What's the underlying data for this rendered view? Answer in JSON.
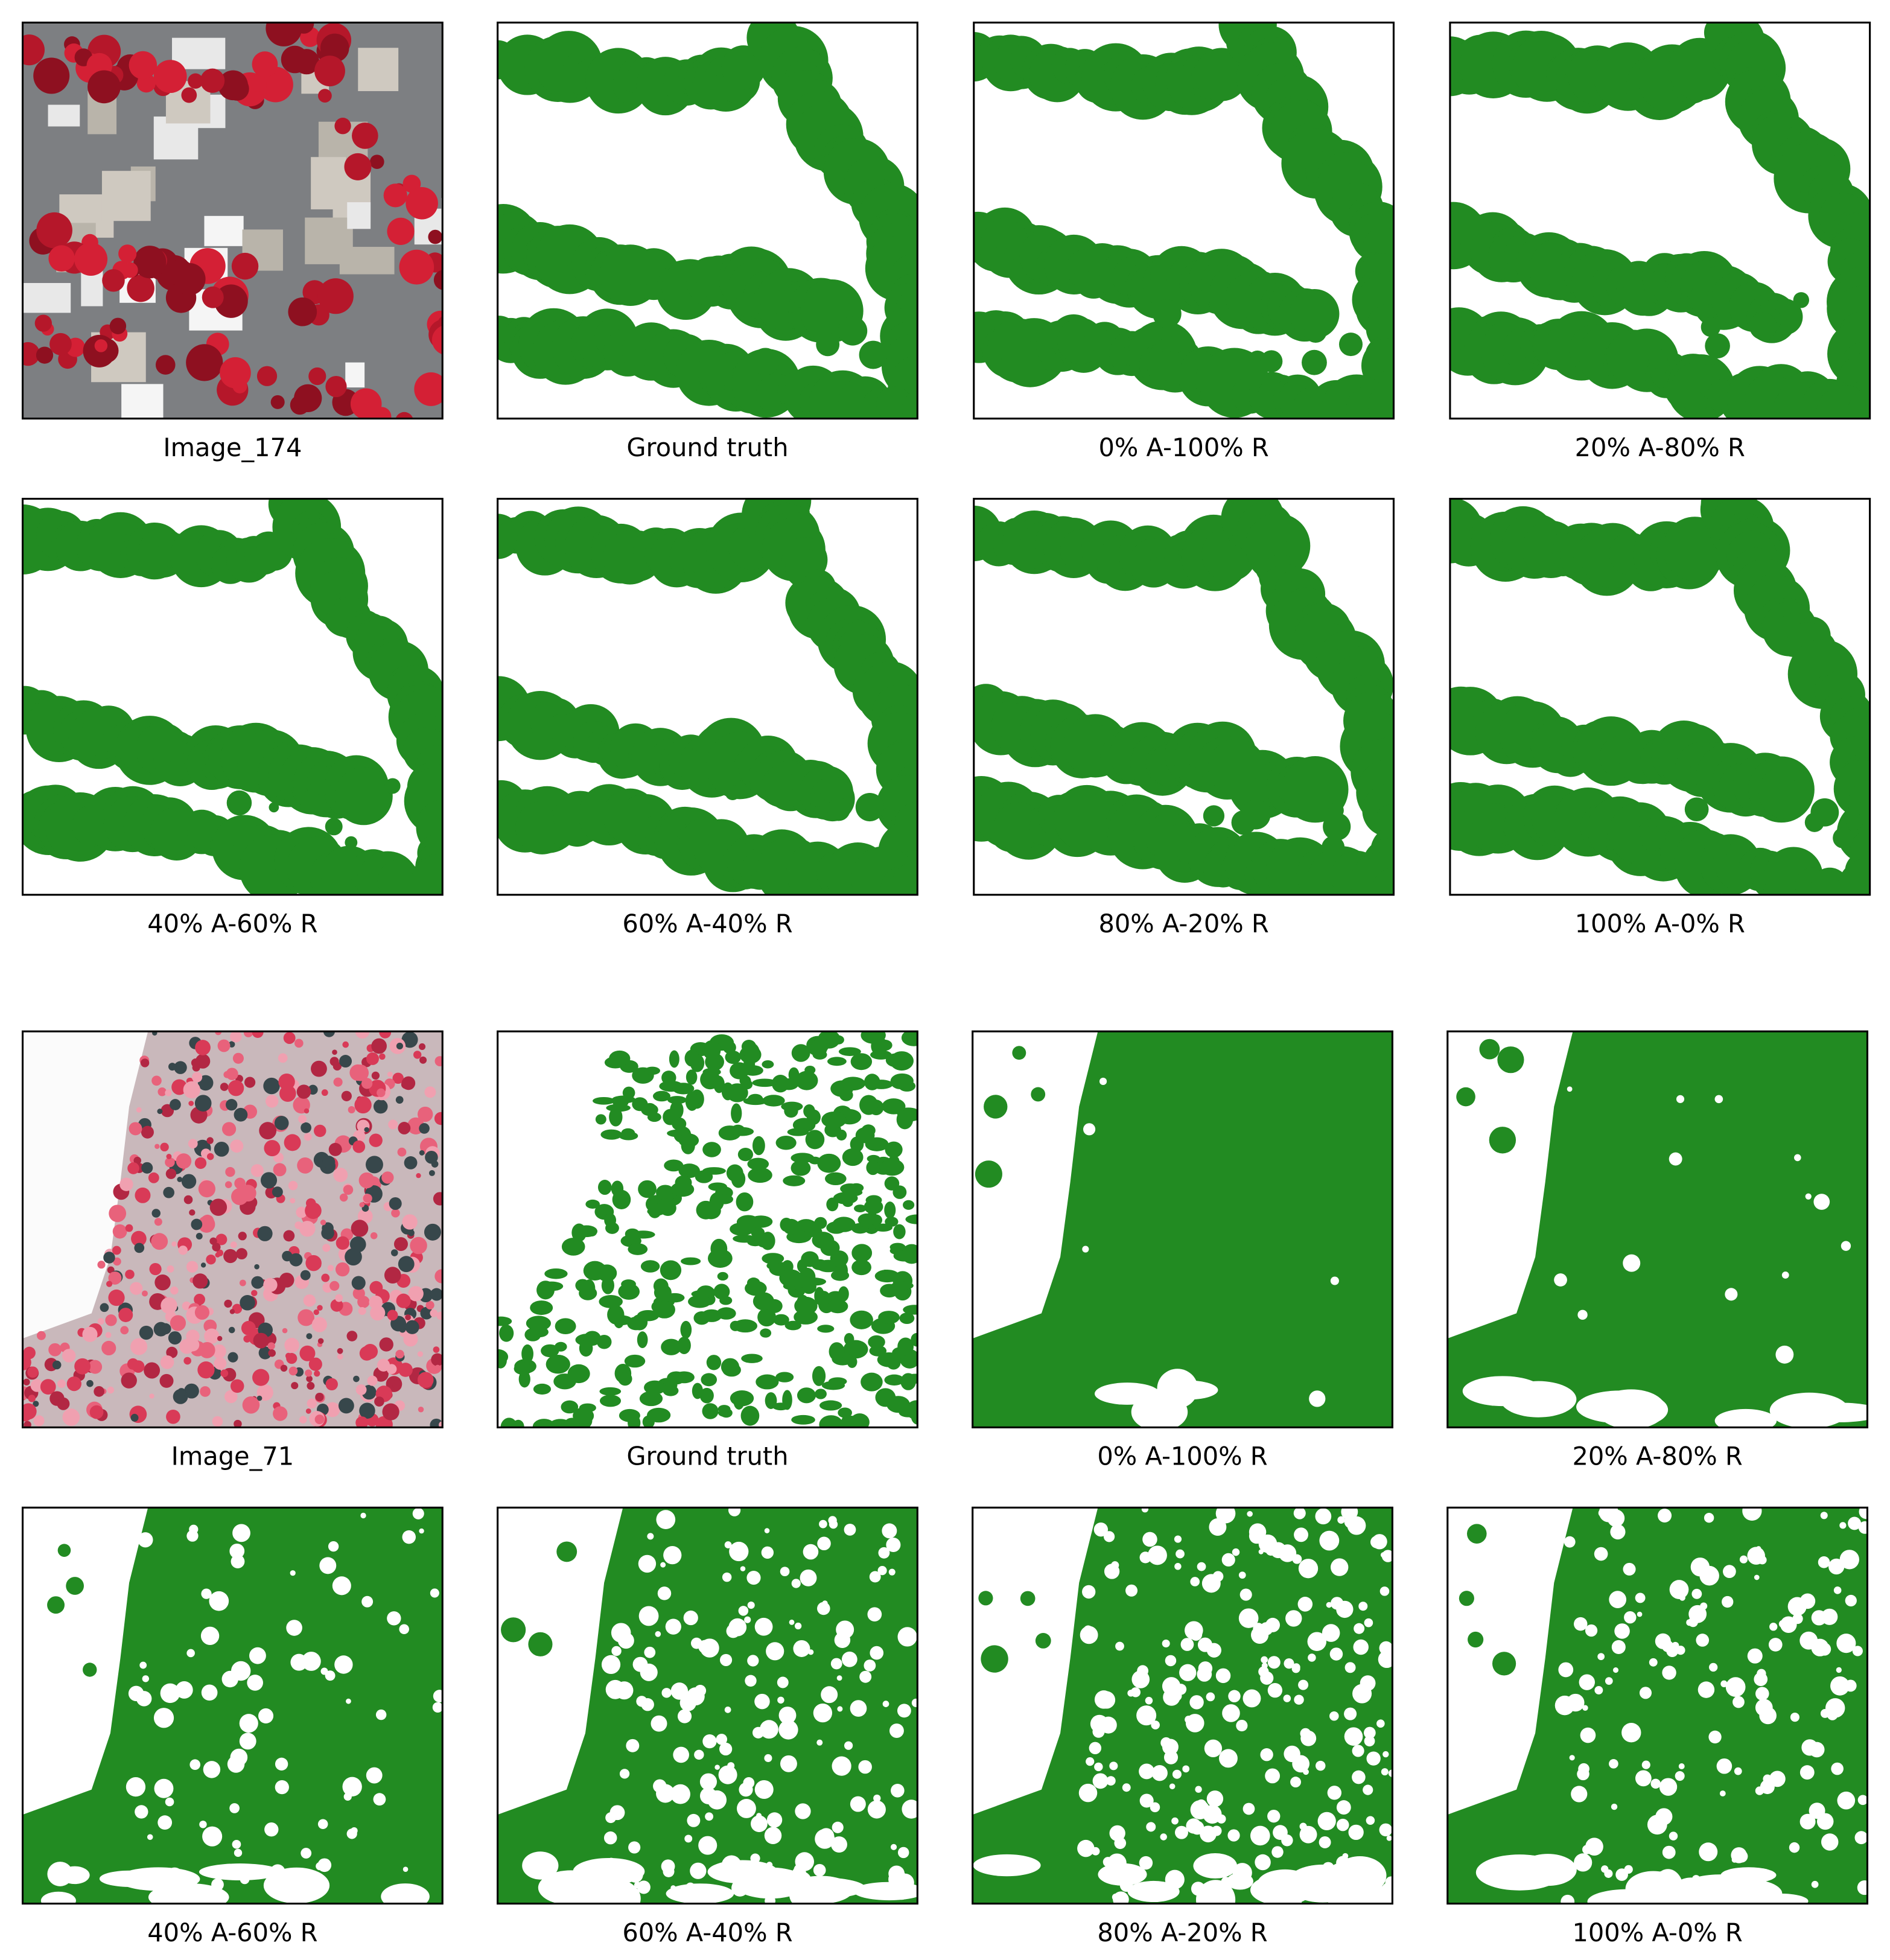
{
  "figures": [
    {
      "panels": [
        {
          "caption": "Image_174"
        },
        {
          "caption": "Ground truth"
        },
        {
          "caption": "0% A-100% R"
        },
        {
          "caption": "20% A-80% R"
        },
        {
          "caption": "40% A-60% R"
        },
        {
          "caption": "60% A-40% R"
        },
        {
          "caption": "80% A-20% R"
        },
        {
          "caption": "100% A-0% R"
        }
      ]
    },
    {
      "panels": [
        {
          "caption": "Image_71"
        },
        {
          "caption": "Ground truth"
        },
        {
          "caption": "0% A-100% R"
        },
        {
          "caption": "20% A-80% R"
        },
        {
          "caption": "40% A-60% R"
        },
        {
          "caption": "60% A-40% R"
        },
        {
          "caption": "80% A-20% R"
        },
        {
          "caption": "100% A-0% R"
        }
      ]
    }
  ]
}
